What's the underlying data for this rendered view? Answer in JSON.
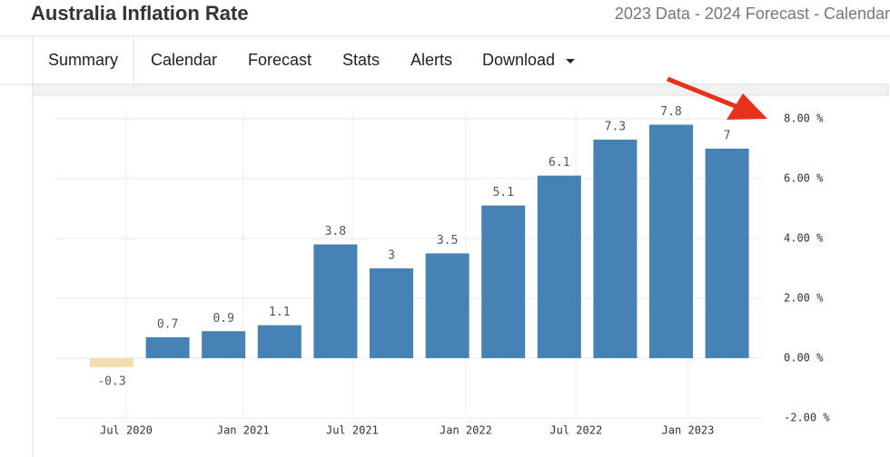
{
  "header": {
    "title": "Australia Inflation Rate",
    "subtitle": "2023 Data - 2024 Forecast - Calendar"
  },
  "tabs": [
    "Summary",
    "Calendar",
    "Forecast",
    "Stats",
    "Alerts",
    "Download"
  ],
  "chart_data": {
    "type": "bar",
    "categories": [
      null,
      null,
      null,
      null,
      null,
      null,
      null,
      null,
      null,
      null,
      null,
      null
    ],
    "values": [
      -0.3,
      0.7,
      0.9,
      1.1,
      3.8,
      3,
      3.5,
      5.1,
      6.1,
      7.3,
      7.8,
      7
    ],
    "color": "#4682b4",
    "negative_color": "#f5dcad",
    "xticks": [
      {
        "value": 0.26,
        "label": "Jul 2020"
      },
      {
        "value": 2.35,
        "label": "Jan 2021"
      },
      {
        "value": 4.3,
        "label": "Jul 2021"
      },
      {
        "value": 6.33,
        "label": "Jan 2022"
      },
      {
        "value": 8.3,
        "label": "Jul 2022"
      },
      {
        "value": 10.3,
        "label": "Jan 2023"
      }
    ],
    "ylim": [
      -2,
      8.3
    ],
    "yticks": [
      {
        "value": -2,
        "label": "-2.00 %"
      },
      {
        "value": 0,
        "label": "0.00 %"
      },
      {
        "value": 2,
        "label": "2.00 %"
      },
      {
        "value": 4,
        "label": "4.00 %"
      },
      {
        "value": 6,
        "label": "6.00 %"
      },
      {
        "value": 8,
        "label": "8.00 %"
      }
    ],
    "grid": true,
    "y_axis_side": "right"
  }
}
